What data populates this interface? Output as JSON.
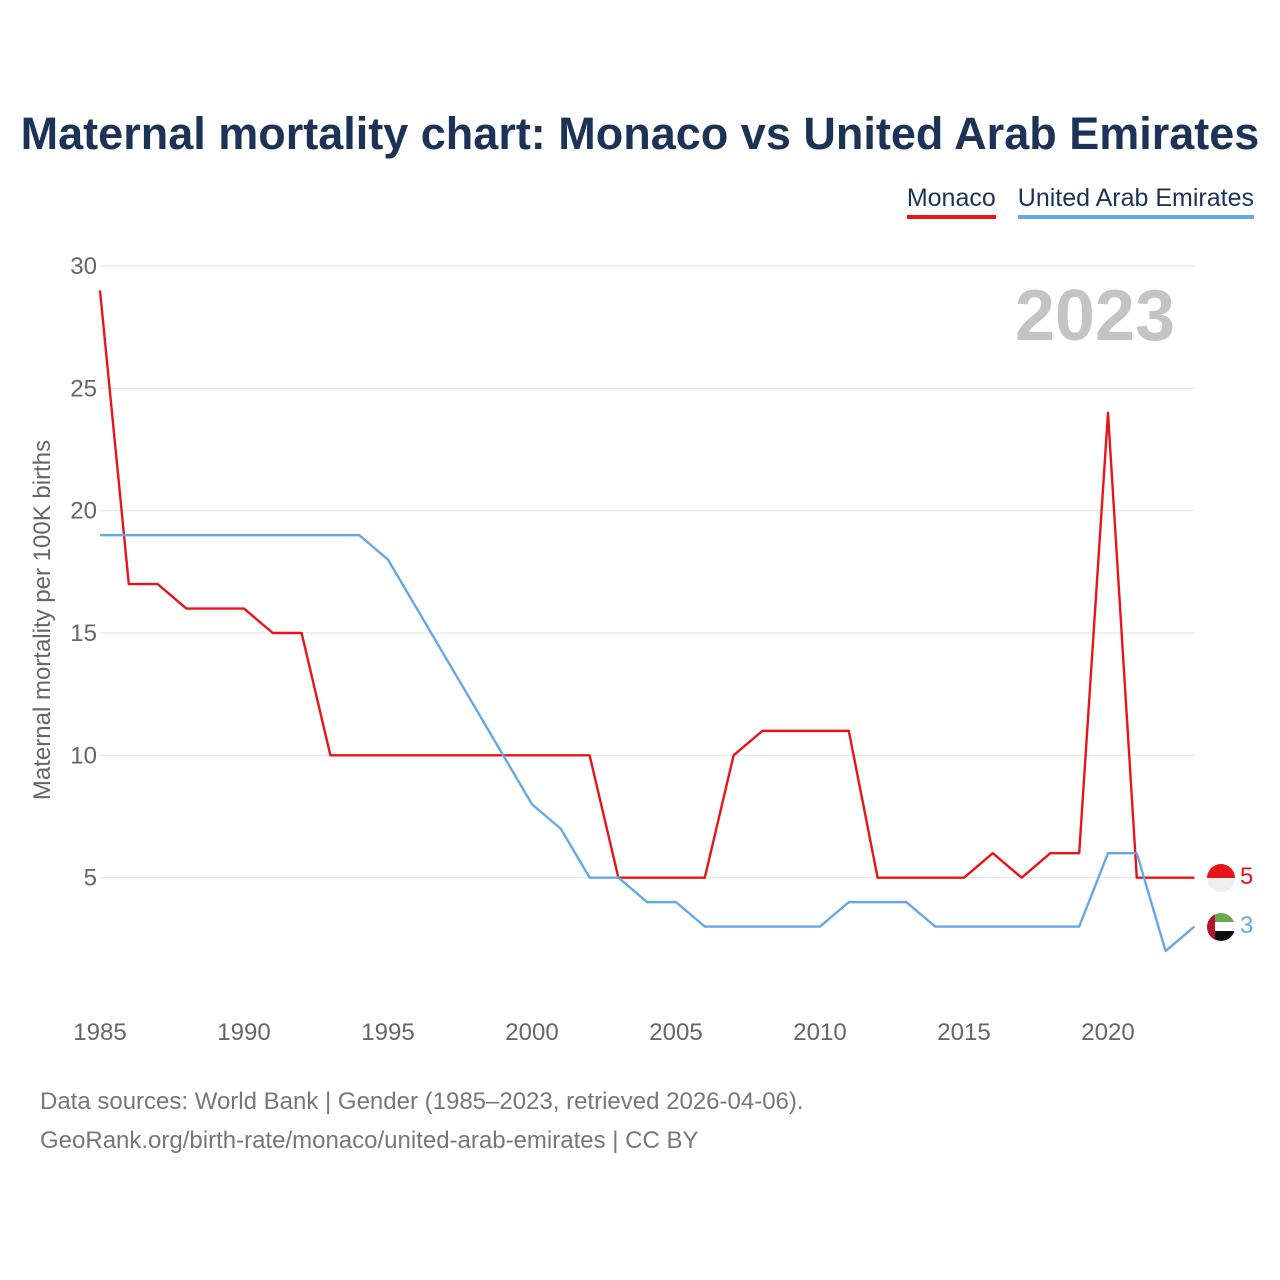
{
  "colors": {
    "monaco": "#e8141a",
    "uae": "#64a9e5",
    "title": "#1b3356",
    "axis_text": "#666666",
    "grid": "#e6e6e6",
    "year_watermark": "#c4c4c4"
  },
  "legend": {
    "monaco": "Monaco",
    "uae": "United Arab Emirates"
  },
  "source": {
    "line1": "Data sources: World Bank | Gender (1985–2023, retrieved 2026-04-06).",
    "line2": "GeoRank.org/birth-rate/monaco/united-arab-emirates | CC BY"
  },
  "chart_data": {
    "type": "line",
    "title": "Maternal mortality chart: Monaco vs United Arab Emirates",
    "xlabel": "",
    "ylabel": "Maternal mortality per 100K births",
    "year_label": "2023",
    "x": [
      1985,
      1986,
      1987,
      1988,
      1989,
      1990,
      1991,
      1992,
      1993,
      1994,
      1995,
      1996,
      1997,
      1998,
      1999,
      2000,
      2001,
      2002,
      2003,
      2004,
      2005,
      2006,
      2007,
      2008,
      2009,
      2010,
      2011,
      2012,
      2013,
      2014,
      2015,
      2016,
      2017,
      2018,
      2019,
      2020,
      2021,
      2022,
      2023
    ],
    "xlim": [
      1985,
      2023
    ],
    "ylim": [
      0,
      30
    ],
    "x_ticks": [
      1985,
      1990,
      1995,
      2000,
      2005,
      2010,
      2015,
      2020
    ],
    "y_ticks": [
      5,
      10,
      15,
      20,
      25,
      30
    ],
    "grid": true,
    "legend_position": "top-right",
    "series": [
      {
        "name": "Monaco",
        "color": "#e8141a",
        "values": [
          29,
          17,
          17,
          16,
          16,
          16,
          15,
          15,
          10,
          10,
          10,
          10,
          10,
          10,
          10,
          10,
          10,
          10,
          5,
          5,
          5,
          5,
          10,
          11,
          11,
          11,
          11,
          5,
          5,
          5,
          5,
          6,
          5,
          6,
          6,
          24,
          5,
          5,
          5
        ],
        "end_label": "5"
      },
      {
        "name": "United Arab Emirates",
        "color": "#64a9e5",
        "values": [
          19,
          19,
          19,
          19,
          19,
          19,
          19,
          19,
          19,
          19,
          18,
          16,
          14,
          12,
          10,
          8,
          7,
          5,
          5,
          4,
          4,
          3,
          3,
          3,
          3,
          3,
          4,
          4,
          4,
          3,
          3,
          3,
          3,
          3,
          3,
          6,
          6,
          2,
          3
        ],
        "end_label": "3"
      }
    ]
  }
}
